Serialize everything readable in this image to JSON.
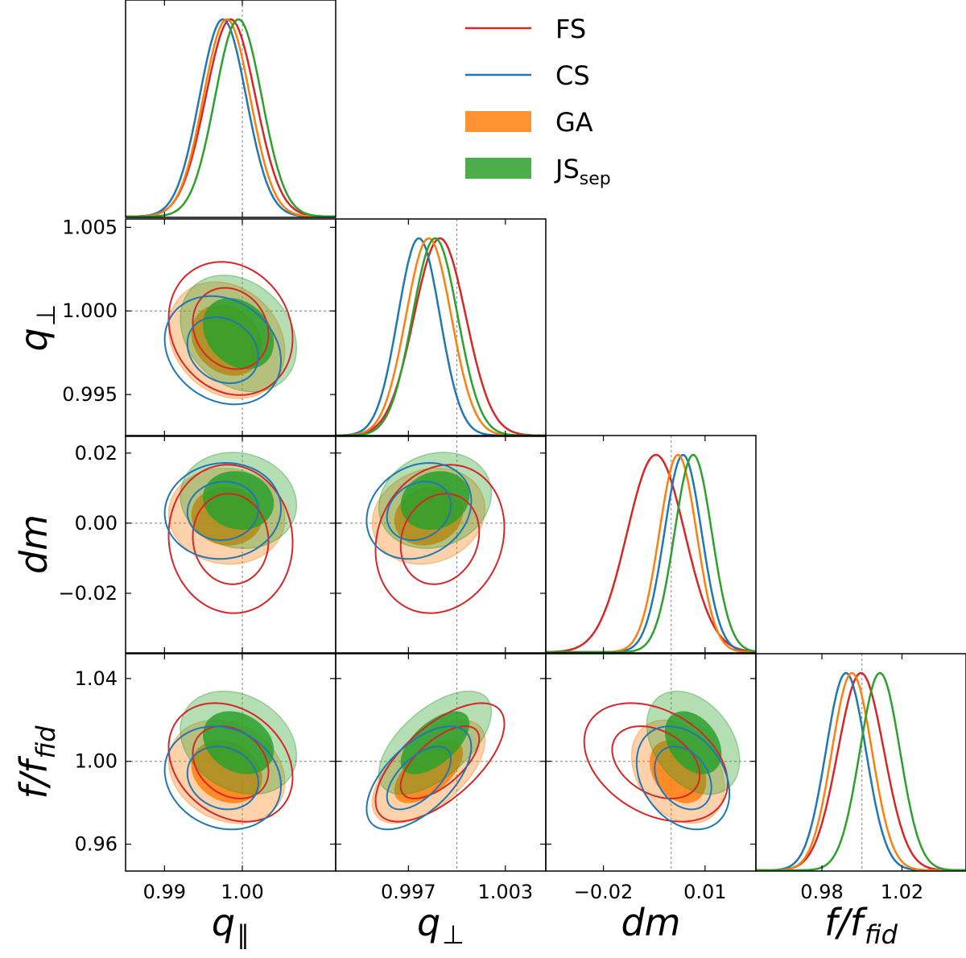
{
  "chart_data": {
    "type": "corner",
    "parameters": [
      {
        "id": "qpar",
        "axis_title": "q",
        "axis_title_sub": "∥",
        "fiducial": 1.0,
        "range": [
          0.985,
          1.012
        ],
        "ticks": [
          {
            "value": 0.99,
            "label": "0.99"
          },
          {
            "value": 1.0,
            "label": "1.00"
          }
        ]
      },
      {
        "id": "qperp",
        "axis_title": "q",
        "axis_title_sub": "⊥",
        "fiducial": 1.0,
        "range": [
          0.9925,
          1.0055
        ],
        "ticks": [
          {
            "value": 0.997,
            "label": "0.997"
          },
          {
            "value": 1.003,
            "label": "1.003"
          }
        ],
        "row_ticks": [
          {
            "value": 0.995,
            "label": "0.995"
          },
          {
            "value": 1.0,
            "label": "1.000"
          },
          {
            "value": 1.005,
            "label": "1.005"
          }
        ]
      },
      {
        "id": "dm",
        "axis_title": "dm",
        "axis_title_sub": "",
        "fiducial": 0.0,
        "range": [
          -0.037,
          0.025
        ],
        "ticks": [
          {
            "value": -0.02,
            "label": "−0.02"
          },
          {
            "value": 0.01,
            "label": "0.01"
          }
        ],
        "row_ticks": [
          {
            "value": -0.02,
            "label": "−0.02"
          },
          {
            "value": 0.0,
            "label": "0.00"
          },
          {
            "value": 0.02,
            "label": "0.02"
          }
        ]
      },
      {
        "id": "f",
        "axis_title": "f/f",
        "axis_title_sub": "fid",
        "fiducial": 1.0,
        "range": [
          0.947,
          1.052
        ],
        "ticks": [
          {
            "value": 0.98,
            "label": "0.98"
          },
          {
            "value": 1.02,
            "label": "1.02"
          }
        ],
        "row_ticks": [
          {
            "value": 0.96,
            "label": "0.96"
          },
          {
            "value": 1.0,
            "label": "1.00"
          },
          {
            "value": 1.04,
            "label": "1.04"
          }
        ]
      }
    ],
    "series": [
      {
        "name": "FS",
        "legend_sub": "",
        "style": "line",
        "color": "#d62728",
        "mean": [
          0.9985,
          0.99895,
          -0.0045,
          0.9995
        ],
        "sigma": [
          0.0032,
          0.0016,
          0.0085,
          0.0115
        ],
        "correlations": {
          "qpar,qperp": -0.15,
          "qpar,dm": -0.05,
          "qpar,f": -0.25,
          "qperp,dm": 0.15,
          "qperp,f": 0.65,
          "dm,f": -0.35
        }
      },
      {
        "name": "CS",
        "legend_sub": "",
        "style": "line",
        "color": "#1f77b4",
        "mean": [
          0.9975,
          0.99765,
          0.0035,
          0.992
        ],
        "sigma": [
          0.003,
          0.0013,
          0.0055,
          0.01
        ],
        "correlations": {
          "qpar,qperp": -0.2,
          "qpar,dm": 0.05,
          "qpar,f": -0.15,
          "qperp,dm": 0.2,
          "qperp,f": 0.6,
          "dm,f": -0.3
        }
      },
      {
        "name": "GA",
        "legend_sub": "",
        "style": "filled",
        "color": "#ff7f0e",
        "mean": [
          0.998,
          0.99825,
          0.002,
          0.995
        ],
        "sigma": [
          0.003,
          0.0014,
          0.0055,
          0.01
        ],
        "correlations": {
          "qpar,qperp": -0.2,
          "qpar,dm": -0.05,
          "qpar,f": -0.2,
          "qperp,dm": 0.15,
          "qperp,f": 0.6,
          "dm,f": -0.3
        }
      },
      {
        "name": "JS",
        "legend_sub": "sep",
        "style": "filled",
        "color": "#2ca02c",
        "mean": [
          0.9995,
          0.99865,
          0.0065,
          1.009
        ],
        "sigma": [
          0.003,
          0.0014,
          0.0055,
          0.01
        ],
        "correlations": {
          "qpar,qperp": -0.25,
          "qpar,dm": -0.1,
          "qpar,f": -0.25,
          "qperp,dm": 0.15,
          "qperp,f": 0.6,
          "dm,f": -0.35
        }
      }
    ],
    "contour_levels": [
      "68%",
      "95%"
    ],
    "grid": false,
    "legend_position": "top-right"
  }
}
